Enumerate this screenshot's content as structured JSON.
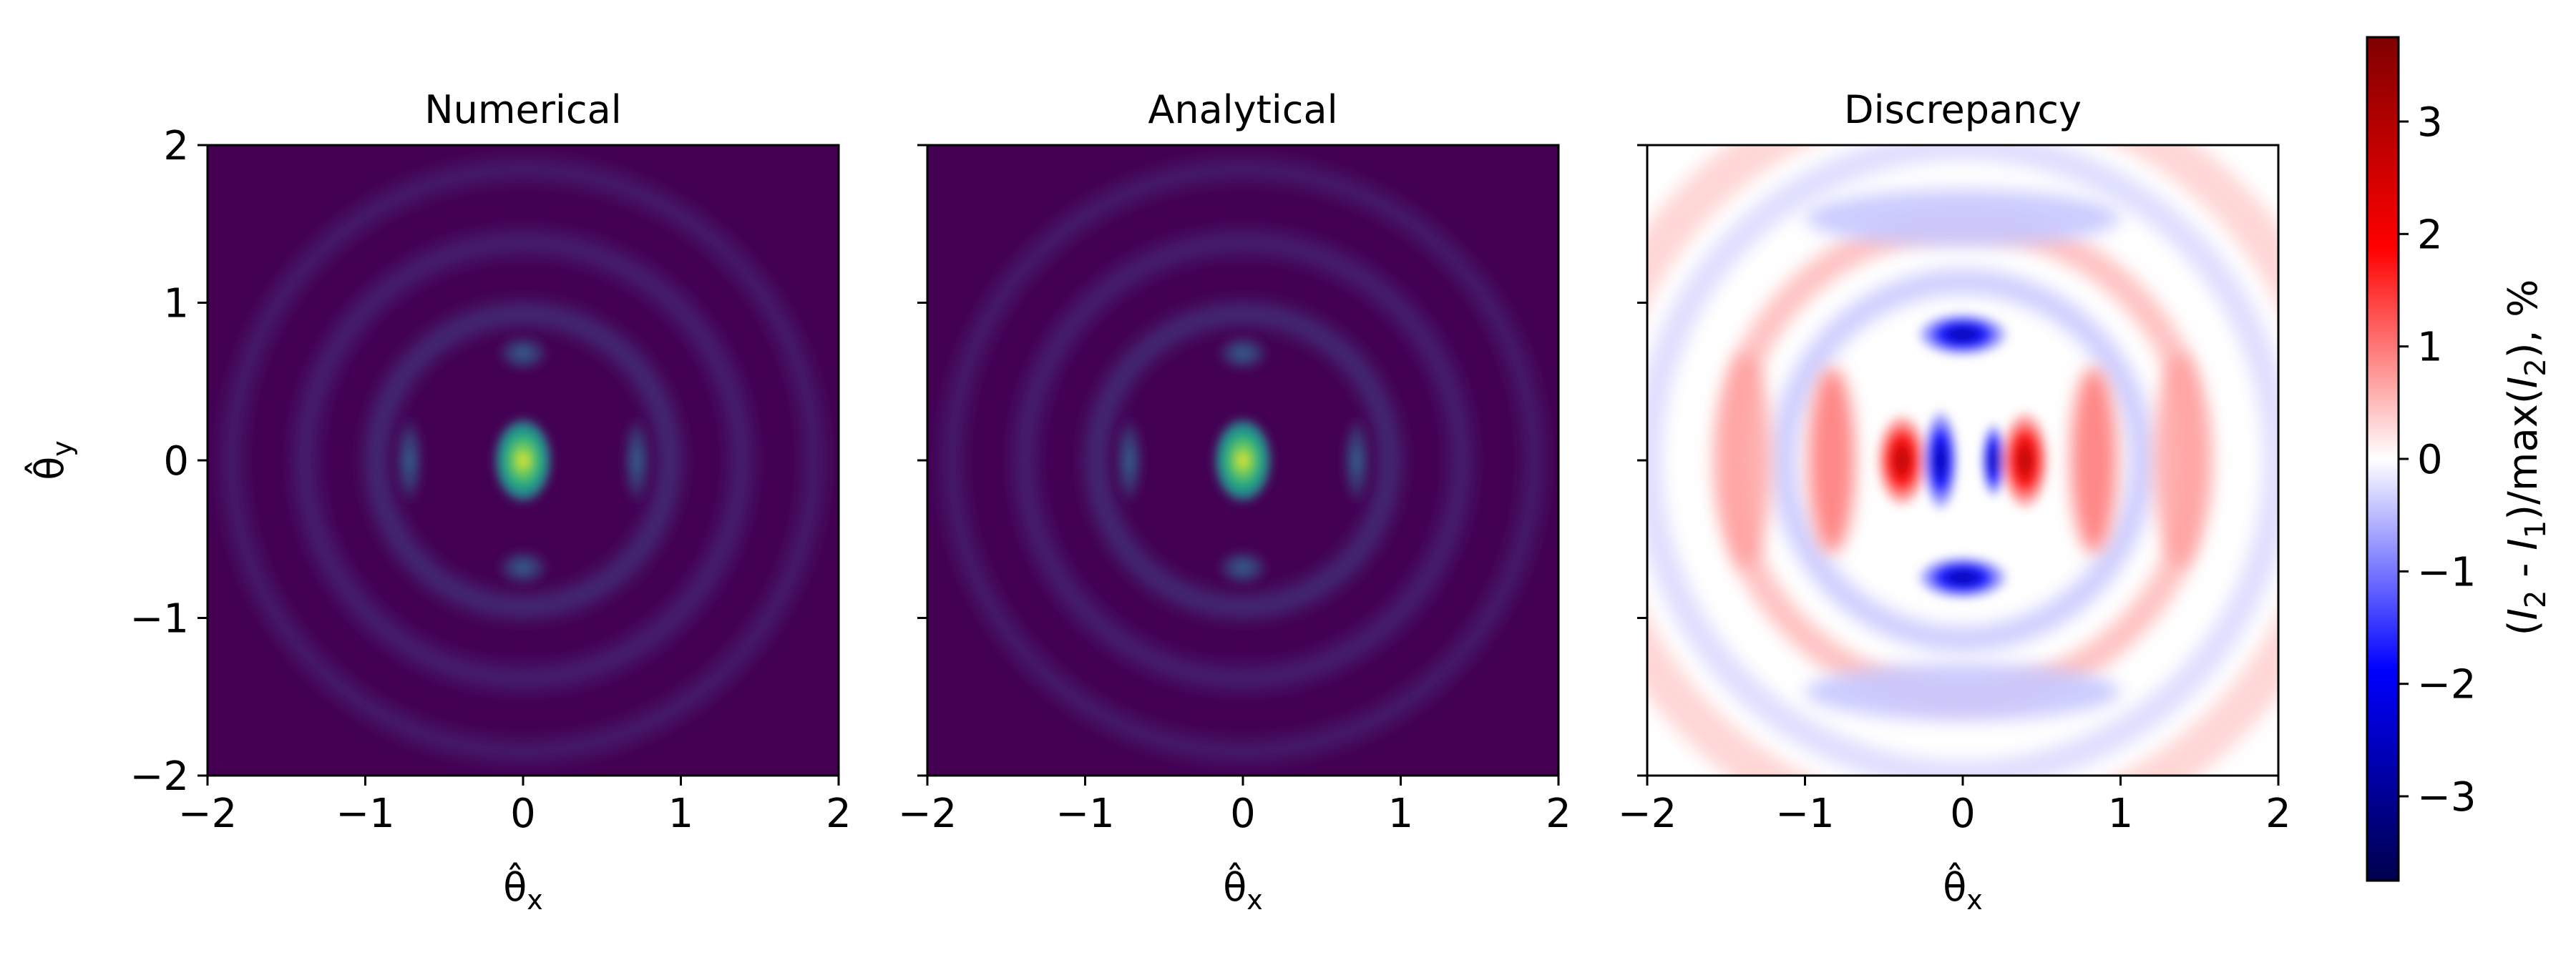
{
  "chart_data": [
    {
      "type": "heatmap",
      "title": "Numerical",
      "xlabel": "θ̂_x",
      "ylabel": "θ̂_y",
      "xlim": [
        -2,
        2
      ],
      "ylim": [
        -2,
        2
      ],
      "xticks": [
        -2,
        -1,
        0,
        1,
        2
      ],
      "yticks": [
        -2,
        -1,
        0,
        1,
        2
      ],
      "xtick_labels": [
        "−2",
        "−1",
        "0",
        "1",
        "2"
      ],
      "ytick_labels": [
        "−2",
        "−1",
        "0",
        "1",
        "2"
      ],
      "colormap": "viridis",
      "peak": {
        "x": 0,
        "y": 0,
        "value": 1.0
      },
      "description_values": {
        "side_lobes_x": [
          -0.72,
          0.72
        ],
        "side_lobes_y": [
          -0.68,
          0.68
        ],
        "ring_radii": [
          0.9,
          1.4,
          1.85
        ]
      }
    },
    {
      "type": "heatmap",
      "title": "Analytical",
      "xlabel": "θ̂_x",
      "ylabel": "",
      "xlim": [
        -2,
        2
      ],
      "ylim": [
        -2,
        2
      ],
      "xticks": [
        -2,
        -1,
        0,
        1,
        2
      ],
      "yticks": [
        -2,
        -1,
        0,
        1,
        2
      ],
      "xtick_labels": [
        "−2",
        "−1",
        "0",
        "1",
        "2"
      ],
      "colormap": "viridis",
      "peak": {
        "x": 0,
        "y": 0,
        "value": 1.0
      },
      "description_values": {
        "side_lobes_x": [
          -0.72,
          0.72
        ],
        "side_lobes_y": [
          -0.68,
          0.68
        ],
        "ring_radii": [
          0.9,
          1.4,
          1.85
        ]
      }
    },
    {
      "type": "heatmap",
      "title": "Discrepancy",
      "xlabel": "θ̂_x",
      "ylabel": "",
      "xlim": [
        -2,
        2
      ],
      "ylim": [
        -2,
        2
      ],
      "xticks": [
        -2,
        -1,
        0,
        1,
        2
      ],
      "yticks": [
        -2,
        -1,
        0,
        1,
        2
      ],
      "xtick_labels": [
        "−2",
        "−1",
        "0",
        "1",
        "2"
      ],
      "colormap": "seismic",
      "value_range": [
        -3.75,
        3.75
      ],
      "colorbar": {
        "label": "(I₂ - I₁)/max(I₂), %",
        "ticks": [
          -3,
          -2,
          -1,
          0,
          1,
          2,
          3
        ],
        "tick_labels": [
          "−3",
          "−2",
          "−1",
          "0",
          "1",
          "2",
          "3"
        ],
        "range": [
          -3.75,
          3.75
        ]
      },
      "features": [
        {
          "x": -0.38,
          "y": 0,
          "value": 3.0
        },
        {
          "x": -0.15,
          "y": 0,
          "value": -3.3
        },
        {
          "x": 0.2,
          "y": 0,
          "value": -2.6
        },
        {
          "x": 0.4,
          "y": 0,
          "value": 3.7
        },
        {
          "x": 0,
          "y": 0.8,
          "value": -2.0
        },
        {
          "x": 0,
          "y": -0.75,
          "value": -2.2
        }
      ]
    }
  ]
}
